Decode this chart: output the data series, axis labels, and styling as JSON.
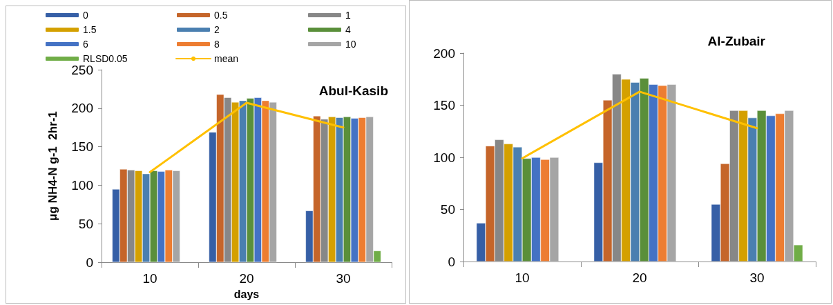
{
  "chart_data": [
    {
      "type": "bar",
      "title": "Abul-Kasib",
      "xlabel": "days",
      "ylabel": "μg NH4-N g-1  2hr-1",
      "categories": [
        "10",
        "20",
        "30"
      ],
      "ylim": [
        0,
        250
      ],
      "yticks": [
        0,
        50,
        100,
        150,
        200,
        250
      ],
      "grid": false,
      "legend": "top",
      "series": [
        {
          "name": "0",
          "color": "#365fa6",
          "values": [
            95,
            169,
            67
          ]
        },
        {
          "name": "0.5",
          "color": "#c5652a",
          "values": [
            121,
            218,
            190
          ]
        },
        {
          "name": "1",
          "color": "#878787",
          "values": [
            120,
            214,
            186
          ]
        },
        {
          "name": "1.5",
          "color": "#d4a000",
          "values": [
            119,
            208,
            189
          ]
        },
        {
          "name": "2",
          "color": "#4a7fb0",
          "values": [
            115,
            210,
            188
          ]
        },
        {
          "name": "4",
          "color": "#5a8f3a",
          "values": [
            119,
            213,
            189
          ]
        },
        {
          "name": "6",
          "color": "#4472c4",
          "values": [
            118,
            214,
            187
          ]
        },
        {
          "name": "8",
          "color": "#ed7d31",
          "values": [
            120,
            210,
            188
          ]
        },
        {
          "name": "10",
          "color": "#a5a5a5",
          "values": [
            119,
            208,
            189
          ]
        },
        {
          "name": "RLSD0.05",
          "color": "#70ad47",
          "values": [
            null,
            null,
            15
          ]
        },
        {
          "name": "mean",
          "type": "line",
          "color": "#ffc000",
          "marker": "none",
          "values": [
            117,
            207,
            175
          ]
        }
      ]
    },
    {
      "type": "bar",
      "title": "Al-Zubair",
      "categories": [
        "10",
        "20",
        "30"
      ],
      "ylim": [
        0,
        200
      ],
      "yticks": [
        0,
        50,
        100,
        150,
        200
      ],
      "grid": false,
      "legend": false,
      "series": [
        {
          "color": "#365fa6",
          "values": [
            37,
            95,
            55
          ]
        },
        {
          "color": "#c5652a",
          "values": [
            111,
            155,
            94
          ]
        },
        {
          "color": "#878787",
          "values": [
            117,
            180,
            145
          ]
        },
        {
          "color": "#d4a000",
          "values": [
            113,
            175,
            145
          ]
        },
        {
          "color": "#4a7fb0",
          "values": [
            110,
            172,
            138
          ]
        },
        {
          "color": "#5a8f3a",
          "values": [
            99,
            176,
            145
          ]
        },
        {
          "color": "#4472c4",
          "values": [
            100,
            170,
            140
          ]
        },
        {
          "color": "#ed7d31",
          "values": [
            98,
            169,
            142
          ]
        },
        {
          "color": "#a5a5a5",
          "values": [
            100,
            170,
            145
          ]
        },
        {
          "color": "#70ad47",
          "values": [
            null,
            null,
            16
          ]
        },
        {
          "type": "line",
          "color": "#ffc000",
          "marker": "none",
          "values": [
            99,
            163,
            128
          ]
        }
      ]
    }
  ]
}
